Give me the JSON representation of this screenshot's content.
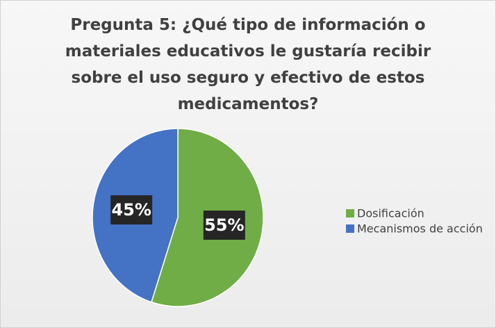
{
  "chart_data": {
    "type": "pie",
    "title": "Pregunta 5: ¿Qué tipo de información o materiales educativos le gustaría recibir sobre el uso seguro y efectivo de estos medicamentos?",
    "categories": [
      "Dosificación",
      "Mecanismos de acción"
    ],
    "values": [
      55,
      45
    ],
    "value_labels": [
      "55%",
      "45%"
    ],
    "colors": [
      "#70ad47",
      "#4472c4"
    ],
    "legend": "right"
  }
}
